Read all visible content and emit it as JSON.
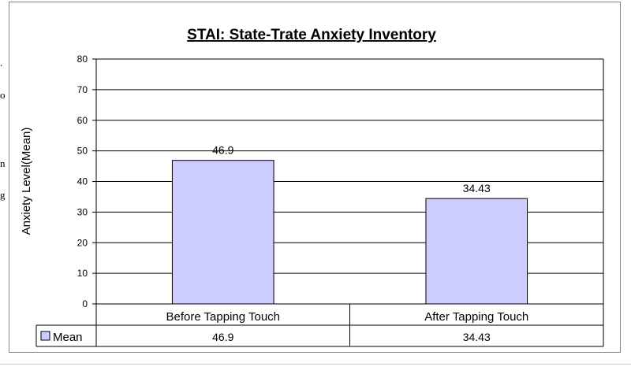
{
  "margin_fragments": [
    ".",
    "o",
    "n",
    "g"
  ],
  "chart_data": {
    "type": "bar",
    "title": "STAI: State-Trate Anxiety Inventory",
    "ylabel": "Anxiety Level(Mean)",
    "xlabel": "",
    "categories": [
      "Before Tapping Touch",
      "After Tapping Touch"
    ],
    "series": [
      {
        "name": "Mean",
        "values": [
          46.9,
          34.43
        ],
        "labels": [
          "46.9",
          "34.43"
        ],
        "color": "#ccccff"
      }
    ],
    "ylim": [
      0,
      80
    ],
    "yticks": [
      0,
      10,
      20,
      30,
      40,
      50,
      60,
      70,
      80
    ],
    "grid": true,
    "legend": "data-table",
    "data_table": true
  }
}
